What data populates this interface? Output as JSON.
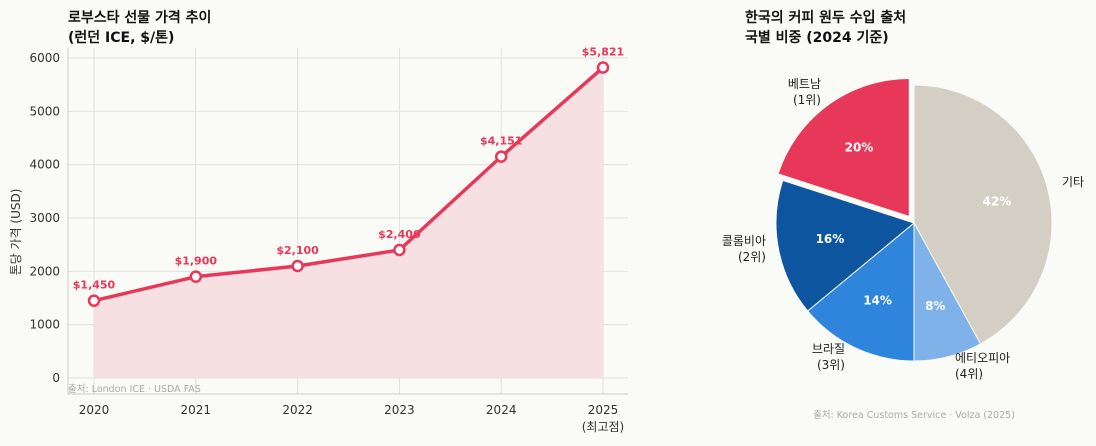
{
  "chart_data": [
    {
      "type": "line",
      "title_line1": "로부스타 선물 가격 추이",
      "title_line2": "(런던 ICE, $/톤)",
      "ylabel": "톤당 가격 (USD)",
      "xlabel": "",
      "categories": [
        "2020",
        "2021",
        "2022",
        "2023",
        "2024",
        "2025"
      ],
      "category_sublabels": [
        "",
        "",
        "",
        "",
        "",
        "(최고점)"
      ],
      "values": [
        1450,
        1900,
        2100,
        2400,
        4151,
        5821
      ],
      "data_labels": [
        "$1,450",
        "$1,900",
        "$2,100",
        "$2,400",
        "$4,151",
        "$5,821"
      ],
      "yticks": [
        0,
        1000,
        2000,
        3000,
        4000,
        5000,
        6000
      ],
      "ylim": [
        -300,
        6100
      ],
      "grid": true,
      "color": "#e8385a",
      "fill_color": "#f7e0e1",
      "source": "출처: London ICE · USDA FAS"
    },
    {
      "type": "pie",
      "title_line1": "한국의 커피 원두 수입 출처",
      "title_line2": "국별 비중 (2024 기준)",
      "slices": [
        {
          "name": "기타",
          "rank": "",
          "value": 42,
          "label": "42%",
          "color": "#d3cfc5"
        },
        {
          "name": "에티오피아",
          "rank": "(4위)",
          "value": 8,
          "label": "8%",
          "color": "#7fb2e8"
        },
        {
          "name": "브라질",
          "rank": "(3위)",
          "value": 14,
          "label": "14%",
          "color": "#2f84db"
        },
        {
          "name": "콜롬비아",
          "rank": "(2위)",
          "value": 16,
          "label": "16%",
          "color": "#0e55a0"
        },
        {
          "name": "베트남",
          "rank": "(1위)",
          "value": 20,
          "label": "20%",
          "color": "#e8385a",
          "exploded": true
        }
      ],
      "source": "출처: Korea Customs Service · Volza (2025)"
    }
  ]
}
